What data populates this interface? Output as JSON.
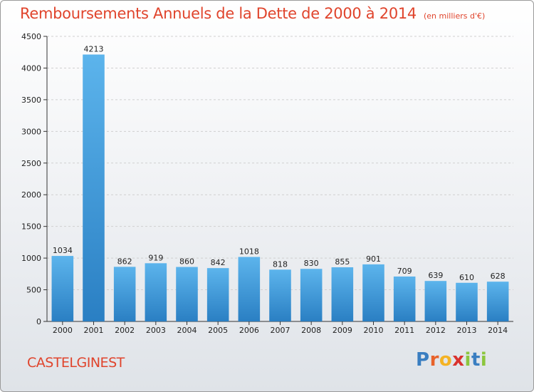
{
  "title": "Remboursements Annuels de la Dette de 2000 à 2014",
  "subtitle": "(en milliers d'€)",
  "commune": "CASTELGINEST",
  "logo": {
    "letters": [
      "P",
      "r",
      "o",
      "x",
      "i",
      "t",
      "i"
    ],
    "colors": [
      "#3a7ec1",
      "#e8622a",
      "#f4b324",
      "#d9322e",
      "#8cc63e",
      "#3a7ec1",
      "#8cc63e"
    ]
  },
  "colors": {
    "bar_top": "#5cb4ec",
    "bar_bottom": "#2a7fc3",
    "title": "#e0442c",
    "axis": "#333333",
    "grid": "#d0d0d0"
  },
  "chart_data": {
    "type": "bar",
    "title": "Remboursements Annuels de la Dette de 2000 à 2014",
    "subtitle": "(en milliers d'€)",
    "categories": [
      "2000",
      "2001",
      "2002",
      "2003",
      "2004",
      "2005",
      "2006",
      "2007",
      "2008",
      "2009",
      "2010",
      "2011",
      "2012",
      "2013",
      "2014"
    ],
    "values": [
      1034,
      4213,
      862,
      919,
      860,
      842,
      1018,
      818,
      830,
      855,
      901,
      709,
      639,
      610,
      628
    ],
    "ylim": [
      0,
      4500
    ],
    "yticks": [
      0,
      500,
      1000,
      1500,
      2000,
      2500,
      3000,
      3500,
      4000,
      4500
    ],
    "grid": true,
    "xlabel": "",
    "ylabel": ""
  }
}
